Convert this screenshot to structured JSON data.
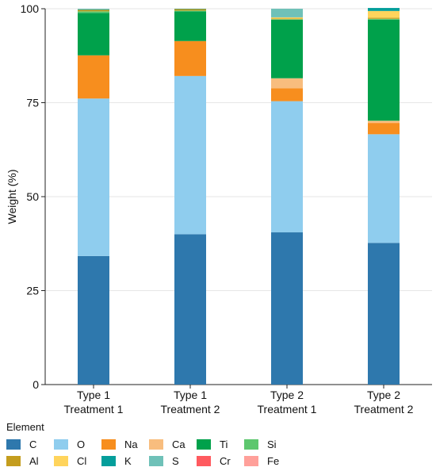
{
  "chart_data": {
    "type": "bar",
    "stacked": true,
    "title": "",
    "xlabel": "",
    "ylabel": "Weight (%)",
    "ylim": [
      0,
      100
    ],
    "yticks": [
      0,
      25,
      50,
      75,
      100
    ],
    "grid": true,
    "legend_title": "Element",
    "legend_position": "bottom",
    "categories": [
      [
        "Type 1",
        "Treatment 1"
      ],
      [
        "Type 1",
        "Treatment 2"
      ],
      [
        "Type 2",
        "Treatment 1"
      ],
      [
        "Type 2",
        "Treatment 2"
      ]
    ],
    "series": [
      {
        "name": "C",
        "color": "#2e78ad",
        "values": [
          34.2,
          40.0,
          40.5,
          37.7
        ]
      },
      {
        "name": "O",
        "color": "#8fcdee",
        "values": [
          41.9,
          42.1,
          34.9,
          28.9
        ]
      },
      {
        "name": "Na",
        "color": "#f78e1e",
        "values": [
          11.5,
          9.3,
          3.4,
          3.0
        ]
      },
      {
        "name": "Ca",
        "color": "#f8bd7e",
        "values": [
          0.0,
          0.0,
          2.7,
          0.6
        ]
      },
      {
        "name": "Ti",
        "color": "#00a14b",
        "values": [
          11.3,
          7.9,
          15.6,
          26.9
        ]
      },
      {
        "name": "Si",
        "color": "#5dc76e",
        "values": [
          0.4,
          0.2,
          0.1,
          0.2
        ]
      },
      {
        "name": "Al",
        "color": "#c49d1e",
        "values": [
          0.4,
          0.4,
          0.2,
          0.3
        ]
      },
      {
        "name": "Cl",
        "color": "#ffd45c",
        "values": [
          0.0,
          0.0,
          0.3,
          1.8
        ]
      },
      {
        "name": "K",
        "color": "#049e9b",
        "values": [
          0.1,
          0.1,
          0.0,
          0.8
        ]
      },
      {
        "name": "S",
        "color": "#6fc1b8",
        "values": [
          0.2,
          0.0,
          2.3,
          0.0
        ]
      },
      {
        "name": "Cr",
        "color": "#ff5a5f",
        "values": [
          0.0,
          0.0,
          0.0,
          0.0
        ]
      },
      {
        "name": "Fe",
        "color": "#ffa09a",
        "values": [
          0.0,
          0.0,
          0.0,
          0.0
        ]
      }
    ]
  }
}
